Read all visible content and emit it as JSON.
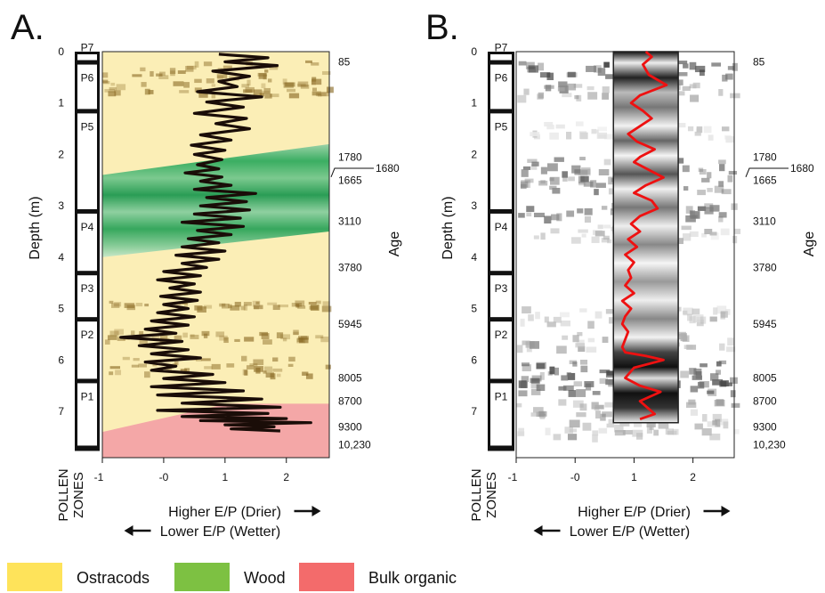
{
  "chart_data": [
    {
      "panel_label": "A.",
      "type": "line",
      "depth_ticks": [
        0,
        1,
        2,
        3,
        4,
        5,
        6,
        7
      ],
      "x_ticks": [
        "-1",
        "-0",
        "1",
        "2"
      ],
      "ylabel": "Depth (m)",
      "age_axis_label": "Age",
      "pollen_axis_label": [
        "POLLEN",
        "ZONES"
      ],
      "pollen_zones": [
        {
          "label": "P7",
          "top": 0.0,
          "bottom": 0.2
        },
        {
          "label": "P6",
          "top": 0.2,
          "bottom": 1.15
        },
        {
          "label": "P5",
          "top": 1.15,
          "bottom": 3.1
        },
        {
          "label": "P4",
          "top": 3.1,
          "bottom": 4.3
        },
        {
          "label": "P3",
          "top": 4.3,
          "bottom": 5.2
        },
        {
          "label": "P2",
          "top": 5.2,
          "bottom": 6.4
        },
        {
          "label": "P1",
          "top": 6.4,
          "bottom": 7.7
        }
      ],
      "ages": [
        {
          "label": "85",
          "depth": 0.2
        },
        {
          "label": "1780",
          "depth": 2.05
        },
        {
          "label": "1665",
          "depth": 2.5
        },
        {
          "label": "3110",
          "depth": 3.3
        },
        {
          "label": "3780",
          "depth": 4.2
        },
        {
          "label": "5945",
          "depth": 5.3
        },
        {
          "label": "8005",
          "depth": 6.35
        },
        {
          "label": "8700",
          "depth": 6.8
        },
        {
          "label": "9300",
          "depth": 7.3
        },
        {
          "label": "10,230",
          "depth": 7.65
        }
      ],
      "age_callout": "1680",
      "arrow_right_label": "Higher E/P (Drier)",
      "arrow_left_label": "Lower E/P (Wetter)",
      "series_color": "#1a0d08",
      "series": [
        {
          "x": [
            0.9,
            1.7,
            1.0,
            1.85,
            0.8,
            1.4,
            0.9,
            1.2,
            0.55,
            1.6,
            0.7,
            1.3,
            0.5,
            1.35,
            0.85,
            1.4,
            0.6,
            1.1,
            0.45,
            1.0,
            0.5,
            0.95,
            0.55,
            0.9,
            0.35,
            0.95,
            0.6,
            1.1,
            0.5,
            1.5,
            0.7,
            1.35,
            0.6,
            1.4,
            0.5,
            1.25,
            0.3,
            1.3,
            0.55,
            1.1,
            0.4,
            0.9,
            0.3,
            1.0,
            0.2,
            0.9,
            0.3,
            0.7,
            0.0,
            0.6,
            -0.1,
            0.5,
            0.1,
            0.6,
            -0.05,
            0.55,
            0.0,
            0.4,
            -0.1,
            0.5,
            -0.2,
            0.4,
            -0.3,
            0.2,
            -0.7,
            0.3,
            -0.4,
            0.4,
            -0.2,
            0.6,
            -0.3,
            0.2,
            -0.2,
            0.8,
            0.0,
            1.0,
            -0.2,
            1.3,
            -0.1,
            1.6,
            0.3,
            1.9,
            -0.1,
            1.7,
            0.3,
            2.0,
            0.6,
            2.4,
            1.0,
            1.8,
            1.1,
            1.9
          ],
          "y": [
            0.05,
            0.12,
            0.2,
            0.27,
            0.38,
            0.48,
            0.58,
            0.68,
            0.78,
            0.88,
            0.98,
            1.08,
            1.2,
            1.3,
            1.4,
            1.5,
            1.62,
            1.72,
            1.82,
            1.92,
            2.0,
            2.1,
            2.2,
            2.28,
            2.36,
            2.44,
            2.52,
            2.6,
            2.68,
            2.76,
            2.84,
            2.92,
            3.0,
            3.08,
            3.16,
            3.24,
            3.32,
            3.4,
            3.48,
            3.56,
            3.64,
            3.72,
            3.8,
            3.88,
            3.96,
            4.04,
            4.12,
            4.2,
            4.28,
            4.36,
            4.44,
            4.52,
            4.6,
            4.68,
            4.76,
            4.84,
            4.92,
            5.0,
            5.08,
            5.16,
            5.24,
            5.32,
            5.4,
            5.48,
            5.56,
            5.64,
            5.72,
            5.8,
            5.88,
            5.96,
            6.04,
            6.12,
            6.2,
            6.28,
            6.36,
            6.44,
            6.52,
            6.6,
            6.68,
            6.76,
            6.84,
            6.92,
            6.98,
            7.04,
            7.1,
            7.14,
            7.18,
            7.22,
            7.26,
            7.3,
            7.34,
            7.38
          ]
        }
      ],
      "background_bands": [
        {
          "type": "Ostracods",
          "top": 0.0,
          "bottom": 1.75
        },
        {
          "type": "Wood",
          "top": 1.75,
          "bottom": 3.9
        },
        {
          "type": "Ostracods",
          "top": 3.9,
          "bottom": 6.9
        },
        {
          "type": "Bulk organic",
          "top": 6.9,
          "bottom": 7.9
        }
      ]
    },
    {
      "panel_label": "B.",
      "type": "line",
      "depth_ticks": [
        0,
        1,
        2,
        3,
        4,
        5,
        6,
        7
      ],
      "x_ticks": [
        "-1",
        "-0",
        "1",
        "2"
      ],
      "ylabel": "Depth (m)",
      "age_axis_label": "Age",
      "pollen_axis_label": [
        "POLLEN",
        "ZONES"
      ],
      "pollen_zones": [
        {
          "label": "P7",
          "top": 0.0,
          "bottom": 0.2
        },
        {
          "label": "P6",
          "top": 0.2,
          "bottom": 1.15
        },
        {
          "label": "P5",
          "top": 1.15,
          "bottom": 3.1
        },
        {
          "label": "P4",
          "top": 3.1,
          "bottom": 4.3
        },
        {
          "label": "P3",
          "top": 4.3,
          "bottom": 5.2
        },
        {
          "label": "P2",
          "top": 5.2,
          "bottom": 6.4
        },
        {
          "label": "P1",
          "top": 6.4,
          "bottom": 7.7
        }
      ],
      "ages": [
        {
          "label": "85",
          "depth": 0.2
        },
        {
          "label": "1780",
          "depth": 2.05
        },
        {
          "label": "1665",
          "depth": 2.5
        },
        {
          "label": "3110",
          "depth": 3.3
        },
        {
          "label": "3780",
          "depth": 4.2
        },
        {
          "label": "5945",
          "depth": 5.3
        },
        {
          "label": "8005",
          "depth": 6.35
        },
        {
          "label": "8700",
          "depth": 6.8
        },
        {
          "label": "9300",
          "depth": 7.3
        },
        {
          "label": "10,230",
          "depth": 7.65
        }
      ],
      "age_callout": "1680",
      "arrow_right_label": "Higher E/P (Drier)",
      "arrow_left_label": "Lower E/P (Wetter)",
      "series_color": "#ee1111",
      "series": [
        {
          "x": [
            1.2,
            1.3,
            1.15,
            1.25,
            1.55,
            1.1,
            0.95,
            1.15,
            1.3,
            1.1,
            0.9,
            1.05,
            1.35,
            1.1,
            1.0,
            1.25,
            1.5,
            1.2,
            1.0,
            1.3,
            1.4,
            1.1,
            0.95,
            1.1,
            0.9,
            1.05,
            0.85,
            1.0,
            0.9,
            0.95,
            0.85,
            1.0,
            0.8,
            0.95,
            0.85,
            0.8,
            0.9,
            0.85,
            0.8,
            0.85,
            1.2,
            1.5,
            1.0,
            0.85,
            1.1,
            1.45,
            1.1,
            1.25,
            1.35,
            1.1
          ],
          "y": [
            0.0,
            0.1,
            0.25,
            0.45,
            0.65,
            0.85,
            1.0,
            1.15,
            1.3,
            1.45,
            1.6,
            1.75,
            1.9,
            2.05,
            2.15,
            2.3,
            2.45,
            2.6,
            2.75,
            2.9,
            3.05,
            3.2,
            3.35,
            3.5,
            3.65,
            3.8,
            3.95,
            4.1,
            4.25,
            4.4,
            4.55,
            4.7,
            4.85,
            5.0,
            5.15,
            5.3,
            5.45,
            5.6,
            5.75,
            5.85,
            5.92,
            6.0,
            6.15,
            6.35,
            6.5,
            6.62,
            6.8,
            6.95,
            7.05,
            7.15
          ]
        }
      ]
    }
  ],
  "legend": [
    {
      "label": "Ostracods",
      "color": "#fee35a"
    },
    {
      "label": "Wood",
      "color": "#7dc142"
    },
    {
      "label": "Bulk organic",
      "color": "#f36b6b"
    }
  ]
}
